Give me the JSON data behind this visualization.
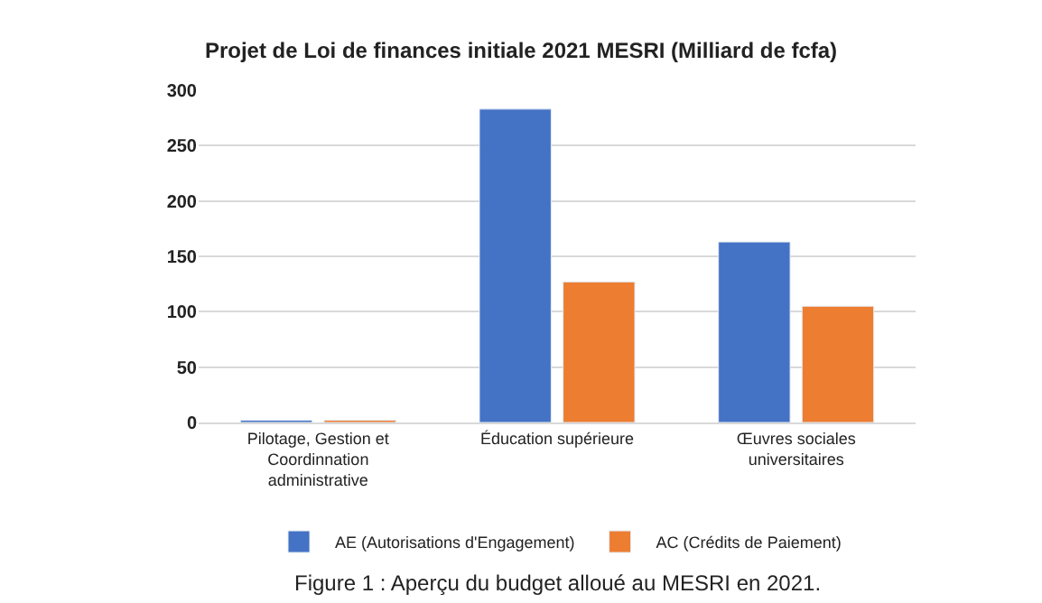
{
  "chart_data": {
    "type": "bar",
    "title": "Projet de Loi de finances initiale 2021 MESRI (Milliard de fcfa)",
    "categories": [
      "Pilotage, Gestion et Coordinnation administrative",
      "Éducation supérieure",
      "Œuvres sociales universitaires"
    ],
    "series": [
      {
        "name": "AE (Autorisations d'Engagement)",
        "color": "#4472c4",
        "values": [
          2,
          283,
          163
        ]
      },
      {
        "name": "AC (Crédits de Paiement)",
        "color": "#ed7d31",
        "values": [
          2,
          127,
          105
        ]
      }
    ],
    "ylim": [
      0,
      300
    ],
    "yticks": [
      0,
      50,
      100,
      150,
      200,
      250,
      300
    ],
    "grid": "y",
    "legend": "bottom",
    "annotations": [
      "Figure 1 : Aperçu du budget alloué au MESRI en 2021."
    ]
  }
}
